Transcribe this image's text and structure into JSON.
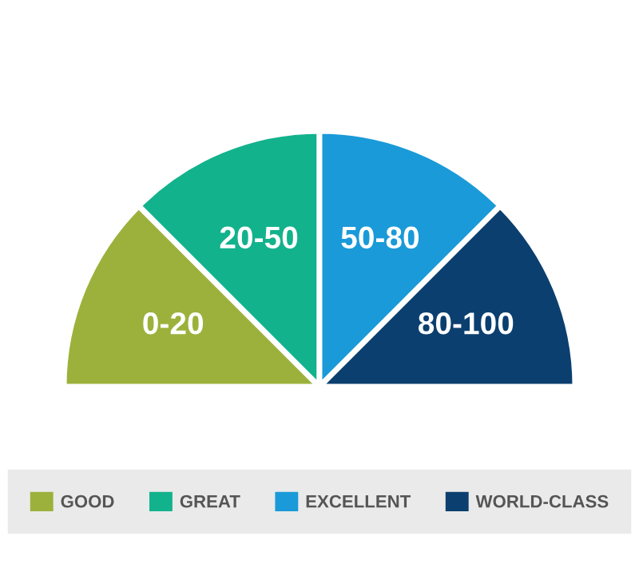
{
  "chart_data": {
    "type": "pie",
    "categories": [
      "GOOD",
      "GREAT",
      "EXCELLENT",
      "WORLD-CLASS"
    ],
    "values": [
      25,
      25,
      25,
      25
    ],
    "value_labels": [
      "0-20",
      "20-50",
      "50-80",
      "80-100"
    ],
    "colors": [
      "#9cb13c",
      "#12b28c",
      "#1a9ad8",
      "#0b3f6f"
    ],
    "legend": "bottom"
  }
}
